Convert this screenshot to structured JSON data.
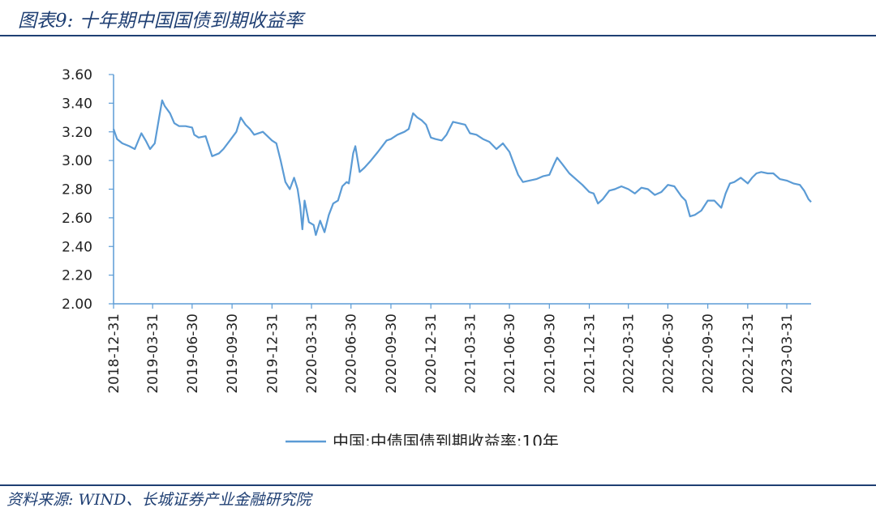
{
  "figure": {
    "title": "图表9:  十年期中国国债到期收益率",
    "source": "资料来源:  WIND、长城证券产业金融研究院"
  },
  "chart_data": {
    "type": "line",
    "title": "",
    "xlabel": "",
    "ylabel": "",
    "ylim": [
      2.0,
      3.6
    ],
    "y_ticks": [
      "2.00",
      "2.20",
      "2.40",
      "2.60",
      "2.80",
      "3.00",
      "3.20",
      "3.40",
      "3.60"
    ],
    "x_ticks": [
      "2018-12-31",
      "2019-03-31",
      "2019-06-30",
      "2019-09-30",
      "2019-12-31",
      "2020-03-31",
      "2020-06-30",
      "2020-09-30",
      "2020-12-31",
      "2021-03-31",
      "2021-06-30",
      "2021-09-30",
      "2021-12-31",
      "2022-03-31",
      "2022-06-30",
      "2022-09-30",
      "2022-12-31",
      "2023-03-31"
    ],
    "legend_position": "bottom",
    "grid": false,
    "color": "#5b9bd5",
    "series": [
      {
        "name": "中国:中债国债到期收益率:10年",
        "points": [
          [
            "2018-12-31",
            3.22
          ],
          [
            "2019-01-08",
            3.15
          ],
          [
            "2019-01-20",
            3.12
          ],
          [
            "2019-02-05",
            3.1
          ],
          [
            "2019-02-18",
            3.08
          ],
          [
            "2019-03-05",
            3.19
          ],
          [
            "2019-03-15",
            3.14
          ],
          [
            "2019-03-25",
            3.08
          ],
          [
            "2019-04-05",
            3.12
          ],
          [
            "2019-04-15",
            3.3
          ],
          [
            "2019-04-22",
            3.42
          ],
          [
            "2019-04-28",
            3.38
          ],
          [
            "2019-05-10",
            3.33
          ],
          [
            "2019-05-20",
            3.26
          ],
          [
            "2019-05-31",
            3.24
          ],
          [
            "2019-06-15",
            3.24
          ],
          [
            "2019-06-30",
            3.23
          ],
          [
            "2019-07-05",
            3.18
          ],
          [
            "2019-07-15",
            3.16
          ],
          [
            "2019-07-31",
            3.17
          ],
          [
            "2019-08-15",
            3.03
          ],
          [
            "2019-08-31",
            3.05
          ],
          [
            "2019-09-10",
            3.08
          ],
          [
            "2019-09-25",
            3.14
          ],
          [
            "2019-10-10",
            3.2
          ],
          [
            "2019-10-20",
            3.3
          ],
          [
            "2019-10-31",
            3.25
          ],
          [
            "2019-11-10",
            3.22
          ],
          [
            "2019-11-20",
            3.18
          ],
          [
            "2019-12-10",
            3.2
          ],
          [
            "2019-12-31",
            3.14
          ],
          [
            "2020-01-10",
            3.12
          ],
          [
            "2020-01-20",
            3.0
          ],
          [
            "2020-01-31",
            2.85
          ],
          [
            "2020-02-10",
            2.8
          ],
          [
            "2020-02-20",
            2.88
          ],
          [
            "2020-02-28",
            2.8
          ],
          [
            "2020-03-05",
            2.68
          ],
          [
            "2020-03-10",
            2.52
          ],
          [
            "2020-03-15",
            2.72
          ],
          [
            "2020-03-25",
            2.57
          ],
          [
            "2020-04-05",
            2.55
          ],
          [
            "2020-04-10",
            2.48
          ],
          [
            "2020-04-20",
            2.58
          ],
          [
            "2020-04-30",
            2.5
          ],
          [
            "2020-05-10",
            2.62
          ],
          [
            "2020-05-20",
            2.7
          ],
          [
            "2020-05-31",
            2.72
          ],
          [
            "2020-06-10",
            2.82
          ],
          [
            "2020-06-20",
            2.85
          ],
          [
            "2020-06-25",
            2.84
          ],
          [
            "2020-07-05",
            3.05
          ],
          [
            "2020-07-10",
            3.1
          ],
          [
            "2020-07-20",
            2.92
          ],
          [
            "2020-07-31",
            2.95
          ],
          [
            "2020-08-15",
            3.0
          ],
          [
            "2020-08-31",
            3.06
          ],
          [
            "2020-09-10",
            3.1
          ],
          [
            "2020-09-20",
            3.14
          ],
          [
            "2020-09-30",
            3.15
          ],
          [
            "2020-10-15",
            3.18
          ],
          [
            "2020-10-31",
            3.2
          ],
          [
            "2020-11-10",
            3.22
          ],
          [
            "2020-11-20",
            3.33
          ],
          [
            "2020-11-30",
            3.3
          ],
          [
            "2020-12-10",
            3.28
          ],
          [
            "2020-12-20",
            3.25
          ],
          [
            "2020-12-31",
            3.16
          ],
          [
            "2021-01-10",
            3.15
          ],
          [
            "2021-01-25",
            3.14
          ],
          [
            "2021-02-05",
            3.18
          ],
          [
            "2021-02-20",
            3.27
          ],
          [
            "2021-03-05",
            3.26
          ],
          [
            "2021-03-20",
            3.25
          ],
          [
            "2021-03-31",
            3.19
          ],
          [
            "2021-04-15",
            3.18
          ],
          [
            "2021-04-30",
            3.15
          ],
          [
            "2021-05-15",
            3.13
          ],
          [
            "2021-05-31",
            3.08
          ],
          [
            "2021-06-15",
            3.12
          ],
          [
            "2021-06-30",
            3.06
          ],
          [
            "2021-07-10",
            2.98
          ],
          [
            "2021-07-20",
            2.9
          ],
          [
            "2021-07-31",
            2.85
          ],
          [
            "2021-08-15",
            2.86
          ],
          [
            "2021-08-31",
            2.87
          ],
          [
            "2021-09-15",
            2.89
          ],
          [
            "2021-09-30",
            2.9
          ],
          [
            "2021-10-10",
            2.97
          ],
          [
            "2021-10-18",
            3.02
          ],
          [
            "2021-10-31",
            2.97
          ],
          [
            "2021-11-15",
            2.91
          ],
          [
            "2021-11-30",
            2.87
          ],
          [
            "2021-12-15",
            2.83
          ],
          [
            "2021-12-31",
            2.78
          ],
          [
            "2022-01-10",
            2.77
          ],
          [
            "2022-01-20",
            2.7
          ],
          [
            "2022-01-31",
            2.73
          ],
          [
            "2022-02-15",
            2.79
          ],
          [
            "2022-02-28",
            2.8
          ],
          [
            "2022-03-15",
            2.82
          ],
          [
            "2022-03-31",
            2.8
          ],
          [
            "2022-04-15",
            2.77
          ],
          [
            "2022-04-30",
            2.81
          ],
          [
            "2022-05-15",
            2.8
          ],
          [
            "2022-05-31",
            2.76
          ],
          [
            "2022-06-15",
            2.78
          ],
          [
            "2022-06-30",
            2.83
          ],
          [
            "2022-07-15",
            2.82
          ],
          [
            "2022-07-31",
            2.75
          ],
          [
            "2022-08-10",
            2.72
          ],
          [
            "2022-08-20",
            2.61
          ],
          [
            "2022-08-31",
            2.62
          ],
          [
            "2022-09-15",
            2.65
          ],
          [
            "2022-09-30",
            2.72
          ],
          [
            "2022-10-15",
            2.72
          ],
          [
            "2022-10-31",
            2.67
          ],
          [
            "2022-11-10",
            2.77
          ],
          [
            "2022-11-20",
            2.84
          ],
          [
            "2022-11-30",
            2.85
          ],
          [
            "2022-12-15",
            2.88
          ],
          [
            "2022-12-31",
            2.84
          ],
          [
            "2023-01-10",
            2.88
          ],
          [
            "2023-01-20",
            2.91
          ],
          [
            "2023-01-31",
            2.92
          ],
          [
            "2023-02-15",
            2.91
          ],
          [
            "2023-02-28",
            2.91
          ],
          [
            "2023-03-15",
            2.87
          ],
          [
            "2023-03-31",
            2.86
          ],
          [
            "2023-04-15",
            2.84
          ],
          [
            "2023-04-30",
            2.83
          ],
          [
            "2023-05-10",
            2.79
          ],
          [
            "2023-05-20",
            2.73
          ],
          [
            "2023-05-26",
            2.71
          ]
        ]
      }
    ]
  }
}
